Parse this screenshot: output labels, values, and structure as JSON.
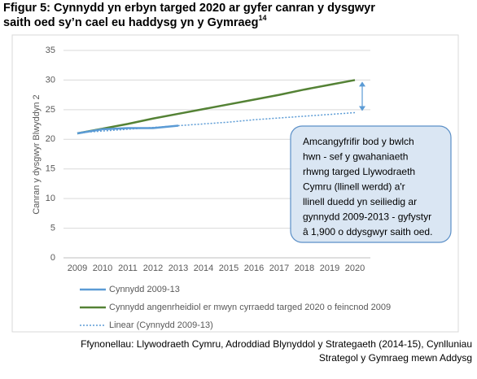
{
  "chart_data": {
    "type": "line",
    "title": "Ffigur 5: Cynnydd yn erbyn targed 2020 ar gyfer canran y dysgwyr saith oed sy’n cael eu haddysg yn y Gymraeg",
    "title_superscript": "14",
    "y_label": "Canran y dysgwyr Blwyddyn 2",
    "x": [
      2009,
      2010,
      2011,
      2012,
      2013,
      2014,
      2015,
      2016,
      2017,
      2018,
      2019,
      2020
    ],
    "ylim": [
      0,
      35
    ],
    "yticks": [
      0,
      5,
      10,
      15,
      20,
      25,
      30,
      35
    ],
    "grid": true,
    "series": [
      {
        "name": "Cynnydd 2009-13",
        "color": "#5b9bd5",
        "style": "solid",
        "values": [
          21.0,
          21.7,
          21.9,
          21.9,
          22.3,
          null,
          null,
          null,
          null,
          null,
          null,
          null
        ]
      },
      {
        "name": "Cynnydd angenrheidiol er mwyn cyrraedd targed 2020 o feincnod 2009",
        "color": "#548235",
        "style": "solid",
        "values": [
          21.0,
          21.8,
          22.6,
          23.5,
          24.3,
          25.1,
          25.9,
          26.7,
          27.5,
          28.4,
          29.2,
          30.0
        ]
      },
      {
        "name": "Linear (Cynnydd 2009-13)",
        "color": "#5b9bd5",
        "style": "dotted",
        "values": [
          21.1,
          21.4,
          21.7,
          22.0,
          22.3,
          22.6,
          22.9,
          23.3,
          23.6,
          23.9,
          24.2,
          24.5
        ]
      }
    ],
    "annotation": [
      "Amcangyfrifir bod y bwlch",
      "hwn - sef y gwahaniaeth",
      "rhwng targed Llywodraeth",
      "Cymru (llinell werdd) a'r",
      "llinell duedd yn seiliedig ar",
      "gynnydd 2009-2013 - gyfystyr",
      "â 1,900 o ddysgwyr saith oed."
    ],
    "source": [
      "Ffynonellau: Llywodraeth Cymru, Adroddiad Blynyddol y Strategaeth (2014-15), Cynlluniau",
      "Strategol y Gymraeg mewn Addysg"
    ]
  }
}
